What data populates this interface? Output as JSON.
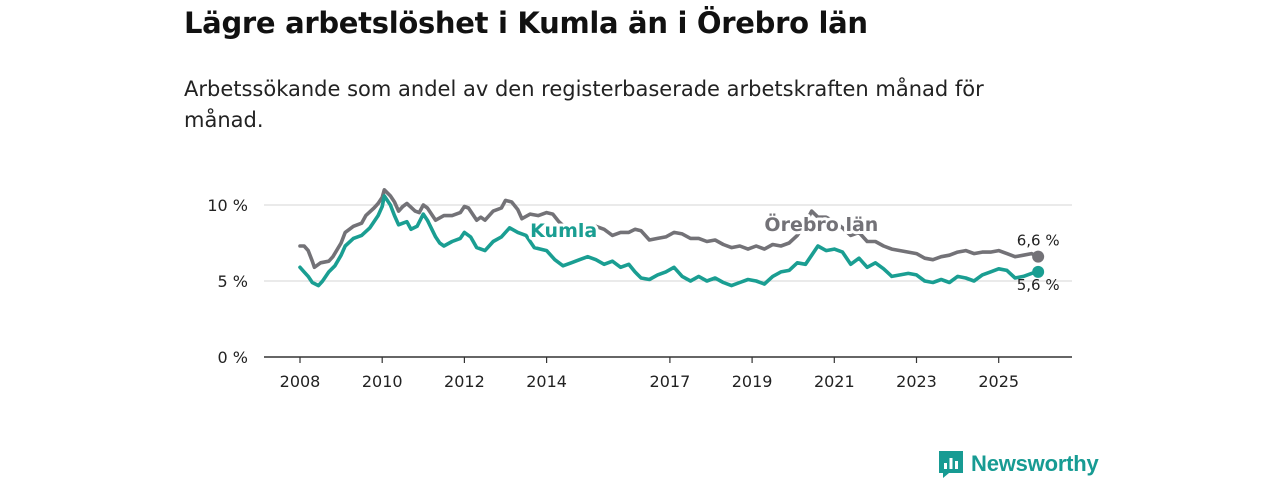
{
  "header": {
    "title": "Lägre arbetslöshet i Kumla än i Örebro län",
    "subtitle": "Arbetssökande som andel av den registerbaserade arbetskraften månad för månad."
  },
  "brand": {
    "name": "Newsworthy",
    "icon": "newsworthy-logo-icon",
    "color": "#179b93"
  },
  "chart_data": {
    "type": "line",
    "title": "Lägre arbetslöshet i Kumla än i Örebro län",
    "subtitle": "Arbetssökande som andel av den registerbaserade arbetskraften månad för månad.",
    "xlabel": "",
    "ylabel": "",
    "xlim": [
      2008,
      2026.9
    ],
    "ylim": [
      0,
      10
    ],
    "grid": true,
    "yticks": [
      {
        "value": 0,
        "label": "0 %"
      },
      {
        "value": 5,
        "label": "5 %"
      },
      {
        "value": 10,
        "label": "10 %"
      }
    ],
    "xticks": [
      {
        "value": 2008,
        "label": "2008"
      },
      {
        "value": 2010,
        "label": "2010"
      },
      {
        "value": 2012,
        "label": "2012"
      },
      {
        "value": 2014,
        "label": "2014"
      },
      {
        "value": 2017,
        "label": "2017"
      },
      {
        "value": 2019,
        "label": "2019"
      },
      {
        "value": 2021,
        "label": "2021"
      },
      {
        "value": 2023,
        "label": "2023"
      },
      {
        "value": 2025,
        "label": "2025"
      }
    ],
    "series": [
      {
        "name": "Örebro län",
        "color": "#737277",
        "end_label": "6,6 %",
        "points": [
          [
            2008.0,
            7.3
          ],
          [
            2008.1,
            7.3
          ],
          [
            2008.2,
            7.0
          ],
          [
            2008.3,
            6.3
          ],
          [
            2008.35,
            5.9
          ],
          [
            2008.5,
            6.2
          ],
          [
            2008.7,
            6.3
          ],
          [
            2008.8,
            6.6
          ],
          [
            2009.0,
            7.5
          ],
          [
            2009.1,
            8.2
          ],
          [
            2009.3,
            8.6
          ],
          [
            2009.5,
            8.8
          ],
          [
            2009.6,
            9.3
          ],
          [
            2009.8,
            9.8
          ],
          [
            2009.9,
            10.1
          ],
          [
            2010.0,
            10.5
          ],
          [
            2010.05,
            11.0
          ],
          [
            2010.2,
            10.6
          ],
          [
            2010.3,
            10.2
          ],
          [
            2010.4,
            9.6
          ],
          [
            2010.5,
            9.9
          ],
          [
            2010.6,
            10.1
          ],
          [
            2010.8,
            9.6
          ],
          [
            2010.9,
            9.5
          ],
          [
            2011.0,
            10.0
          ],
          [
            2011.1,
            9.8
          ],
          [
            2011.3,
            9.0
          ],
          [
            2011.5,
            9.3
          ],
          [
            2011.7,
            9.3
          ],
          [
            2011.9,
            9.5
          ],
          [
            2012.0,
            9.9
          ],
          [
            2012.1,
            9.8
          ],
          [
            2012.3,
            9.0
          ],
          [
            2012.4,
            9.2
          ],
          [
            2012.5,
            9.0
          ],
          [
            2012.7,
            9.6
          ],
          [
            2012.9,
            9.8
          ],
          [
            2013.0,
            10.3
          ],
          [
            2013.15,
            10.2
          ],
          [
            2013.3,
            9.7
          ],
          [
            2013.4,
            9.1
          ],
          [
            2013.6,
            9.4
          ],
          [
            2013.8,
            9.3
          ],
          [
            2014.0,
            9.5
          ],
          [
            2014.15,
            9.4
          ],
          [
            2014.3,
            8.9
          ],
          [
            2014.5,
            8.4
          ],
          [
            2014.7,
            8.5
          ],
          [
            2015.0,
            8.2
          ],
          [
            2015.2,
            8.6
          ],
          [
            2015.4,
            8.4
          ],
          [
            2015.6,
            8.0
          ],
          [
            2015.8,
            8.2
          ],
          [
            2016.0,
            8.2
          ],
          [
            2016.15,
            8.4
          ],
          [
            2016.3,
            8.3
          ],
          [
            2016.5,
            7.7
          ],
          [
            2016.7,
            7.8
          ],
          [
            2016.9,
            7.9
          ],
          [
            2017.1,
            8.2
          ],
          [
            2017.3,
            8.1
          ],
          [
            2017.5,
            7.8
          ],
          [
            2017.7,
            7.8
          ],
          [
            2017.9,
            7.6
          ],
          [
            2018.1,
            7.7
          ],
          [
            2018.3,
            7.4
          ],
          [
            2018.5,
            7.2
          ],
          [
            2018.7,
            7.3
          ],
          [
            2018.9,
            7.1
          ],
          [
            2019.1,
            7.3
          ],
          [
            2019.3,
            7.1
          ],
          [
            2019.5,
            7.4
          ],
          [
            2019.7,
            7.3
          ],
          [
            2019.9,
            7.5
          ],
          [
            2020.1,
            8.0
          ],
          [
            2020.2,
            8.4
          ],
          [
            2020.3,
            8.8
          ],
          [
            2020.45,
            9.6
          ],
          [
            2020.6,
            9.2
          ],
          [
            2020.8,
            9.2
          ],
          [
            2021.0,
            8.9
          ],
          [
            2021.2,
            8.5
          ],
          [
            2021.4,
            8.0
          ],
          [
            2021.6,
            8.2
          ],
          [
            2021.8,
            7.6
          ],
          [
            2022.0,
            7.6
          ],
          [
            2022.2,
            7.3
          ],
          [
            2022.4,
            7.1
          ],
          [
            2022.6,
            7.0
          ],
          [
            2022.8,
            6.9
          ],
          [
            2023.0,
            6.8
          ],
          [
            2023.2,
            6.5
          ],
          [
            2023.4,
            6.4
          ],
          [
            2023.6,
            6.6
          ],
          [
            2023.8,
            6.7
          ],
          [
            2024.0,
            6.9
          ],
          [
            2024.2,
            7.0
          ],
          [
            2024.4,
            6.8
          ],
          [
            2024.6,
            6.9
          ],
          [
            2024.8,
            6.9
          ],
          [
            2025.0,
            7.0
          ],
          [
            2025.2,
            6.8
          ],
          [
            2025.4,
            6.6
          ],
          [
            2025.6,
            6.7
          ],
          [
            2025.8,
            6.8
          ],
          [
            2025.96,
            6.6
          ]
        ]
      },
      {
        "name": "Kumla",
        "color": "#1a9e92",
        "end_label": "5,6 %",
        "points": [
          [
            2008.0,
            5.9
          ],
          [
            2008.1,
            5.6
          ],
          [
            2008.2,
            5.3
          ],
          [
            2008.3,
            4.9
          ],
          [
            2008.45,
            4.7
          ],
          [
            2008.55,
            5.0
          ],
          [
            2008.7,
            5.6
          ],
          [
            2008.85,
            6.0
          ],
          [
            2009.0,
            6.7
          ],
          [
            2009.1,
            7.3
          ],
          [
            2009.3,
            7.8
          ],
          [
            2009.5,
            8.0
          ],
          [
            2009.7,
            8.5
          ],
          [
            2009.9,
            9.3
          ],
          [
            2010.0,
            9.9
          ],
          [
            2010.05,
            10.6
          ],
          [
            2010.2,
            10.0
          ],
          [
            2010.3,
            9.3
          ],
          [
            2010.4,
            8.7
          ],
          [
            2010.5,
            8.8
          ],
          [
            2010.6,
            8.9
          ],
          [
            2010.7,
            8.4
          ],
          [
            2010.85,
            8.6
          ],
          [
            2011.0,
            9.4
          ],
          [
            2011.1,
            9.0
          ],
          [
            2011.3,
            7.9
          ],
          [
            2011.4,
            7.5
          ],
          [
            2011.5,
            7.3
          ],
          [
            2011.7,
            7.6
          ],
          [
            2011.9,
            7.8
          ],
          [
            2012.0,
            8.2
          ],
          [
            2012.15,
            7.9
          ],
          [
            2012.3,
            7.2
          ],
          [
            2012.5,
            7.0
          ],
          [
            2012.7,
            7.6
          ],
          [
            2012.9,
            7.9
          ],
          [
            2013.1,
            8.5
          ],
          [
            2013.3,
            8.2
          ],
          [
            2013.5,
            8.0
          ],
          [
            2013.7,
            7.2
          ],
          [
            2014.0,
            7.0
          ],
          [
            2014.2,
            6.4
          ],
          [
            2014.4,
            6.0
          ],
          [
            2014.6,
            6.2
          ],
          [
            2014.8,
            6.4
          ],
          [
            2015.0,
            6.6
          ],
          [
            2015.2,
            6.4
          ],
          [
            2015.4,
            6.1
          ],
          [
            2015.6,
            6.3
          ],
          [
            2015.8,
            5.9
          ],
          [
            2016.0,
            6.1
          ],
          [
            2016.15,
            5.6
          ],
          [
            2016.3,
            5.2
          ],
          [
            2016.5,
            5.1
          ],
          [
            2016.7,
            5.4
          ],
          [
            2016.9,
            5.6
          ],
          [
            2017.1,
            5.9
          ],
          [
            2017.3,
            5.3
          ],
          [
            2017.5,
            5.0
          ],
          [
            2017.7,
            5.3
          ],
          [
            2017.9,
            5.0
          ],
          [
            2018.1,
            5.2
          ],
          [
            2018.3,
            4.9
          ],
          [
            2018.5,
            4.7
          ],
          [
            2018.7,
            4.9
          ],
          [
            2018.9,
            5.1
          ],
          [
            2019.1,
            5.0
          ],
          [
            2019.3,
            4.8
          ],
          [
            2019.5,
            5.3
          ],
          [
            2019.7,
            5.6
          ],
          [
            2019.9,
            5.7
          ],
          [
            2020.1,
            6.2
          ],
          [
            2020.3,
            6.1
          ],
          [
            2020.45,
            6.7
          ],
          [
            2020.6,
            7.3
          ],
          [
            2020.8,
            7.0
          ],
          [
            2021.0,
            7.1
          ],
          [
            2021.2,
            6.9
          ],
          [
            2021.4,
            6.1
          ],
          [
            2021.6,
            6.5
          ],
          [
            2021.8,
            5.9
          ],
          [
            2022.0,
            6.2
          ],
          [
            2022.2,
            5.8
          ],
          [
            2022.4,
            5.3
          ],
          [
            2022.6,
            5.4
          ],
          [
            2022.8,
            5.5
          ],
          [
            2023.0,
            5.4
          ],
          [
            2023.2,
            5.0
          ],
          [
            2023.4,
            4.9
          ],
          [
            2023.6,
            5.1
          ],
          [
            2023.8,
            4.9
          ],
          [
            2024.0,
            5.3
          ],
          [
            2024.2,
            5.2
          ],
          [
            2024.4,
            5.0
          ],
          [
            2024.6,
            5.4
          ],
          [
            2024.8,
            5.6
          ],
          [
            2025.0,
            5.8
          ],
          [
            2025.2,
            5.7
          ],
          [
            2025.4,
            5.2
          ],
          [
            2025.6,
            5.3
          ],
          [
            2025.8,
            5.5
          ],
          [
            2025.96,
            5.6
          ]
        ]
      }
    ],
    "annotations": [
      {
        "series": "Kumla",
        "text": "Kumla",
        "x": 2013.6,
        "y": 7.9
      },
      {
        "series": "Örebro län",
        "text": "Örebro län",
        "x": 2019.3,
        "y": 8.3
      }
    ]
  }
}
